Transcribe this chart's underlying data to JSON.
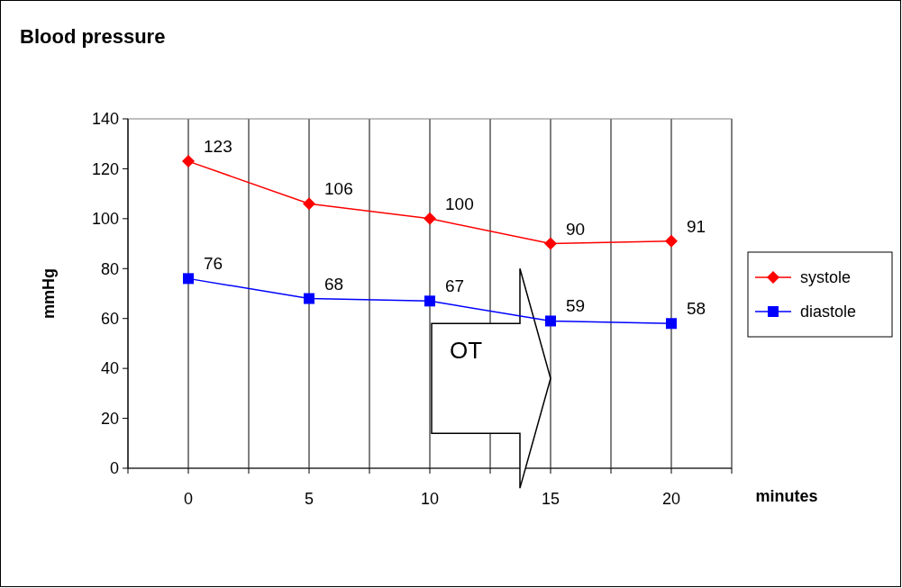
{
  "chart_data": {
    "type": "line",
    "title": "Blood pressure",
    "xlabel": "minutes",
    "ylabel": "mmHg",
    "x": [
      0,
      5,
      10,
      15,
      20
    ],
    "series": [
      {
        "name": "systole",
        "color": "#ff0000",
        "marker": "diamond",
        "values": [
          123,
          106,
          100,
          90,
          91
        ]
      },
      {
        "name": "diastole",
        "color": "#0000ff",
        "marker": "square",
        "values": [
          76,
          68,
          67,
          59,
          58
        ]
      }
    ],
    "xlim": [
      -2.5,
      22.5
    ],
    "xticks": [
      {
        "value": -2.5,
        "label": null
      },
      0,
      {
        "value": 2.5,
        "label": null
      },
      5,
      {
        "value": 7.5,
        "label": null
      },
      10,
      {
        "value": 12.5,
        "label": null
      },
      15,
      {
        "value": 17.5,
        "label": null
      },
      20,
      {
        "value": 22.5,
        "label": null
      }
    ],
    "ylim": [
      0,
      140
    ],
    "yticks": [
      0,
      20,
      40,
      60,
      80,
      100,
      120,
      140
    ],
    "grid": "x",
    "legend": "right",
    "data_labels": true,
    "line_style": "solid",
    "annotations": [
      "OT"
    ]
  }
}
